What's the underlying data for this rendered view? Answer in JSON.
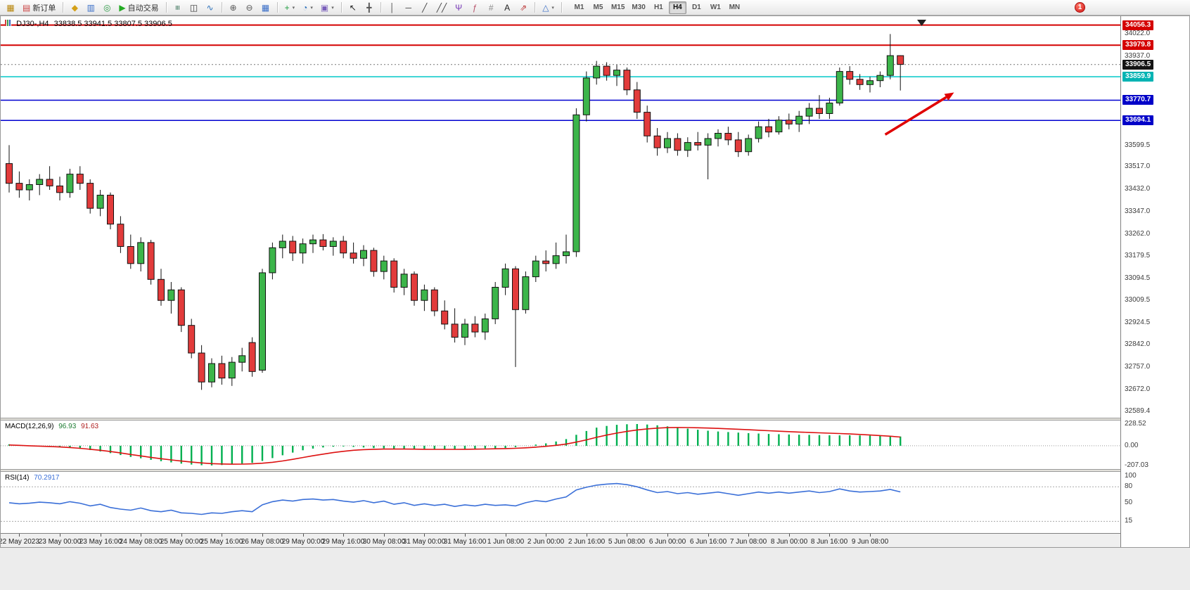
{
  "toolbar": {
    "groups": [
      {
        "name": "file-group",
        "items": [
          {
            "name": "chart-window-icon",
            "glyph": "▦",
            "color": "#b8860b"
          },
          {
            "name": "new-order-button",
            "glyph": "▤",
            "color": "#cc4444",
            "label": "新订单"
          }
        ]
      },
      {
        "name": "panels-group",
        "items": [
          {
            "name": "market-watch-icon",
            "glyph": "◆",
            "color": "#d4a017"
          },
          {
            "name": "data-window-icon",
            "glyph": "▥",
            "color": "#3a6fc8"
          },
          {
            "name": "navigator-icon",
            "glyph": "◎",
            "color": "#2e9b47"
          },
          {
            "name": "autotrading-button",
            "glyph": "▶",
            "color": "#22aa22",
            "label": "自动交易"
          }
        ]
      },
      {
        "name": "chart-type-group",
        "items": [
          {
            "name": "bars-chart-icon",
            "glyph": "≡",
            "color": "#2d6a4f",
            "rotate": true
          },
          {
            "name": "candles-chart-icon",
            "glyph": "◫",
            "color": "#333333"
          },
          {
            "name": "line-chart-icon",
            "glyph": "∿",
            "color": "#2a6fbb"
          }
        ]
      },
      {
        "name": "zoom-group",
        "items": [
          {
            "name": "zoom-in-icon",
            "glyph": "⊕",
            "color": "#555555"
          },
          {
            "name": "zoom-out-icon",
            "glyph": "⊖",
            "color": "#555555"
          },
          {
            "name": "tile-windows-icon",
            "glyph": "▦",
            "color": "#3a6fc8"
          }
        ]
      },
      {
        "name": "insert-group",
        "items": [
          {
            "name": "indicators-button",
            "glyph": "+",
            "color": "#1e9e40",
            "dropdown": true
          },
          {
            "name": "periods-button",
            "glyph": "◔",
            "color": "#2a6fbb",
            "dropdown": true
          },
          {
            "name": "templates-button",
            "glyph": "▣",
            "color": "#7a5fbb",
            "dropdown": true
          }
        ]
      },
      {
        "name": "cursor-group",
        "items": [
          {
            "name": "cursor-icon",
            "glyph": "↖",
            "color": "#222222"
          },
          {
            "name": "crosshair-icon",
            "glyph": "╋",
            "color": "#555555"
          }
        ]
      },
      {
        "name": "draw-group",
        "items": [
          {
            "name": "vline-icon",
            "glyph": "│",
            "color": "#444444"
          },
          {
            "name": "hline-icon",
            "glyph": "─",
            "color": "#444444"
          },
          {
            "name": "trendline-icon",
            "glyph": "╱",
            "color": "#444444"
          },
          {
            "name": "channel-icon",
            "glyph": "╱╱",
            "color": "#444444"
          },
          {
            "name": "pitchfork-icon",
            "glyph": "Ψ",
            "color": "#7a3db8"
          },
          {
            "name": "fibonacci-icon",
            "glyph": "ƒ",
            "color": "#b8536a"
          },
          {
            "name": "gann-icon",
            "glyph": "#",
            "color": "#888888"
          },
          {
            "name": "text-icon",
            "glyph": "A",
            "color": "#222222"
          },
          {
            "name": "arrows-icon",
            "glyph": "⇗",
            "color": "#bb3333"
          }
        ]
      },
      {
        "name": "shapes-group",
        "items": [
          {
            "name": "shapes-button",
            "glyph": "△",
            "color": "#3a6fc8",
            "dropdown": true
          }
        ]
      }
    ],
    "timeframes": [
      "M1",
      "M5",
      "M15",
      "M30",
      "H1",
      "H4",
      "D1",
      "W1",
      "MN"
    ],
    "active_timeframe": "H4",
    "notification_badge": "1"
  },
  "chart": {
    "header_symbol": "DJ30-,H4",
    "header_ohlc": "33838.5 33941.5 33807.5 33906.5"
  },
  "panels": {
    "macd": {
      "name": "MACD(12,26,9)",
      "value_main": "96.93",
      "value_signal": "91.63"
    },
    "rsi": {
      "name": "RSI(14)",
      "value": "70.2917"
    }
  },
  "chart_data": {
    "type": "candlestick",
    "symbol": "DJ30-",
    "period": "H4",
    "current_bar_ohlc": {
      "open": 33838.5,
      "high": 33941.5,
      "low": 33807.5,
      "close": 33906.5
    },
    "current_price": 33906.5,
    "colors": {
      "up": "#3cb54a",
      "down": "#e23b3b",
      "wick": "#111111",
      "macd_hist": "#00b050",
      "macd_signal": "#dd1111",
      "rsi_line": "#3a6fd8",
      "arrow": "#e00000"
    },
    "price_ticks": [
      "34022.0",
      "33937.0",
      "33599.5",
      "33517.0",
      "33432.0",
      "33347.0",
      "33262.0",
      "33179.5",
      "33094.5",
      "33009.5",
      "32924.5",
      "32842.0",
      "32757.0",
      "32672.0",
      "32589.4"
    ],
    "price_badges": [
      {
        "label": "34056.3",
        "color": "#d40000"
      },
      {
        "label": "33979.8",
        "color": "#d40000"
      },
      {
        "label": "33906.5",
        "color": "#141414"
      },
      {
        "label": "33859.9",
        "color": "#00b3b3"
      },
      {
        "label": "33770.7",
        "color": "#0000c8"
      },
      {
        "label": "33694.1",
        "color": "#0000c8"
      }
    ],
    "hlines": [
      {
        "value": 34056.3,
        "color": "#d40000",
        "width": 2
      },
      {
        "value": 33979.8,
        "color": "#d40000",
        "width": 2
      },
      {
        "value": 33859.9,
        "color": "#00c8c8",
        "width": 1.5
      },
      {
        "value": 33770.7,
        "color": "#0000d0",
        "width": 1.5
      },
      {
        "value": 33694.1,
        "color": "#0000d0",
        "width": 1.5
      }
    ],
    "arrow_annotation": {
      "from_index": 86.5,
      "from_price": 33640,
      "to_index": 93.3,
      "to_price": 33800
    },
    "candles": [
      [
        33530,
        33600,
        33420,
        33455
      ],
      [
        33455,
        33500,
        33400,
        33430
      ],
      [
        33430,
        33470,
        33390,
        33450
      ],
      [
        33450,
        33490,
        33410,
        33470
      ],
      [
        33470,
        33520,
        33430,
        33445
      ],
      [
        33445,
        33480,
        33390,
        33420
      ],
      [
        33420,
        33510,
        33400,
        33490
      ],
      [
        33490,
        33520,
        33430,
        33455
      ],
      [
        33455,
        33470,
        33340,
        33360
      ],
      [
        33360,
        33430,
        33330,
        33410
      ],
      [
        33410,
        33420,
        33280,
        33300
      ],
      [
        33300,
        33330,
        33190,
        33215
      ],
      [
        33215,
        33260,
        33130,
        33150
      ],
      [
        33150,
        33250,
        33120,
        33230
      ],
      [
        33230,
        33240,
        33070,
        33090
      ],
      [
        33090,
        33130,
        32990,
        33010
      ],
      [
        33010,
        33080,
        32960,
        33050
      ],
      [
        33050,
        33060,
        32890,
        32915
      ],
      [
        32915,
        32940,
        32790,
        32810
      ],
      [
        32810,
        32840,
        32670,
        32700
      ],
      [
        32700,
        32790,
        32680,
        32770
      ],
      [
        32770,
        32800,
        32690,
        32715
      ],
      [
        32715,
        32795,
        32685,
        32775
      ],
      [
        32775,
        32830,
        32740,
        32800
      ],
      [
        32850,
        32870,
        32720,
        32740
      ],
      [
        32745,
        33130,
        32735,
        33115
      ],
      [
        33115,
        33230,
        33090,
        33210
      ],
      [
        33210,
        33260,
        33170,
        33235
      ],
      [
        33235,
        33255,
        33160,
        33190
      ],
      [
        33190,
        33245,
        33150,
        33225
      ],
      [
        33225,
        33260,
        33190,
        33240
      ],
      [
        33240,
        33262,
        33200,
        33215
      ],
      [
        33215,
        33250,
        33180,
        33235
      ],
      [
        33235,
        33255,
        33170,
        33190
      ],
      [
        33190,
        33230,
        33150,
        33170
      ],
      [
        33170,
        33220,
        33140,
        33200
      ],
      [
        33200,
        33210,
        33100,
        33120
      ],
      [
        33120,
        33180,
        33090,
        33160
      ],
      [
        33160,
        33170,
        33040,
        33060
      ],
      [
        33060,
        33130,
        33030,
        33110
      ],
      [
        33110,
        33120,
        32990,
        33010
      ],
      [
        33010,
        33070,
        32970,
        33050
      ],
      [
        33050,
        33060,
        32950,
        32970
      ],
      [
        32970,
        33010,
        32900,
        32920
      ],
      [
        32920,
        32980,
        32850,
        32870
      ],
      [
        32870,
        32940,
        32840,
        32920
      ],
      [
        32920,
        32950,
        32870,
        32890
      ],
      [
        32890,
        32960,
        32860,
        32940
      ],
      [
        32940,
        33080,
        32920,
        33060
      ],
      [
        33060,
        33150,
        33030,
        33130
      ],
      [
        33130,
        33140,
        32757,
        32975
      ],
      [
        32975,
        33120,
        32960,
        33100
      ],
      [
        33100,
        33180,
        33080,
        33160
      ],
      [
        33160,
        33200,
        33120,
        33150
      ],
      [
        33150,
        33230,
        33130,
        33180
      ],
      [
        33180,
        33260,
        33150,
        33195
      ],
      [
        33195,
        33740,
        33175,
        33715
      ],
      [
        33715,
        33880,
        33690,
        33855
      ],
      [
        33855,
        33920,
        33830,
        33900
      ],
      [
        33900,
        33915,
        33845,
        33865
      ],
      [
        33865,
        33905,
        33825,
        33885
      ],
      [
        33885,
        33895,
        33790,
        33810
      ],
      [
        33810,
        33840,
        33700,
        33725
      ],
      [
        33725,
        33750,
        33610,
        33635
      ],
      [
        33635,
        33665,
        33560,
        33590
      ],
      [
        33590,
        33650,
        33570,
        33625
      ],
      [
        33625,
        33645,
        33560,
        33580
      ],
      [
        33580,
        33630,
        33555,
        33610
      ],
      [
        33610,
        33650,
        33580,
        33600
      ],
      [
        33600,
        33645,
        33470,
        33625
      ],
      [
        33625,
        33660,
        33595,
        33645
      ],
      [
        33645,
        33670,
        33600,
        33620
      ],
      [
        33620,
        33650,
        33555,
        33575
      ],
      [
        33575,
        33640,
        33560,
        33625
      ],
      [
        33625,
        33690,
        33610,
        33670
      ],
      [
        33670,
        33700,
        33630,
        33650
      ],
      [
        33650,
        33710,
        33640,
        33695
      ],
      [
        33695,
        33720,
        33660,
        33680
      ],
      [
        33680,
        33730,
        33650,
        33710
      ],
      [
        33710,
        33760,
        33680,
        33740
      ],
      [
        33740,
        33790,
        33700,
        33720
      ],
      [
        33720,
        33780,
        33700,
        33760
      ],
      [
        33760,
        33895,
        33750,
        33880
      ],
      [
        33880,
        33900,
        33830,
        33850
      ],
      [
        33850,
        33870,
        33810,
        33830
      ],
      [
        33830,
        33860,
        33800,
        33845
      ],
      [
        33845,
        33880,
        33820,
        33865
      ],
      [
        33865,
        34022,
        33850,
        33940
      ],
      [
        33940,
        33941.5,
        33807.5,
        33906.5
      ]
    ],
    "macd": {
      "axis_ticks": [
        "228.52",
        "0.00",
        "-207.03"
      ],
      "hist": [
        15,
        8,
        2,
        -3,
        -8,
        -14,
        -22,
        -32,
        -45,
        -60,
        -78,
        -98,
        -118,
        -132,
        -148,
        -162,
        -175,
        -188,
        -198,
        -205,
        -207,
        -203,
        -196,
        -188,
        -180,
        -160,
        -130,
        -100,
        -72,
        -48,
        -30,
        -18,
        -10,
        -8,
        -12,
        -18,
        -25,
        -28,
        -34,
        -36,
        -40,
        -38,
        -40,
        -38,
        -40,
        -36,
        -32,
        -28,
        -26,
        -24,
        -15,
        -2,
        12,
        25,
        45,
        70,
        115,
        155,
        190,
        208,
        220,
        226,
        228,
        223,
        215,
        204,
        192,
        180,
        168,
        158,
        150,
        144,
        138,
        132,
        128,
        124,
        121,
        118,
        116,
        114,
        112,
        110,
        109,
        110,
        108,
        106,
        104,
        100,
        96.93
      ],
      "signal": [
        8,
        4,
        0,
        -4,
        -8,
        -13,
        -19,
        -27,
        -37,
        -48,
        -61,
        -76,
        -92,
        -107,
        -122,
        -136,
        -149,
        -161,
        -172,
        -181,
        -188,
        -192,
        -194,
        -193,
        -190,
        -184,
        -174,
        -160,
        -143,
        -124,
        -105,
        -88,
        -72,
        -59,
        -48,
        -41,
        -37,
        -35,
        -35,
        -35,
        -36,
        -37,
        -38,
        -38,
        -38,
        -37,
        -36,
        -34,
        -32,
        -30,
        -27,
        -22,
        -15,
        -6,
        4,
        18,
        38,
        62,
        88,
        112,
        133,
        151,
        166,
        177,
        185,
        190,
        192,
        191,
        189,
        186,
        182,
        178,
        173,
        168,
        163,
        158,
        153,
        148,
        144,
        140,
        136,
        132,
        128,
        124,
        119,
        113,
        107,
        100,
        91.63
      ]
    },
    "rsi": {
      "axis_ticks": [
        "100",
        "80",
        "50",
        "15"
      ],
      "levels": [
        80,
        15
      ],
      "series": [
        50,
        48,
        49,
        51,
        50,
        48,
        52,
        49,
        44,
        47,
        41,
        38,
        36,
        40,
        35,
        33,
        36,
        31,
        30,
        28,
        31,
        30,
        33,
        35,
        33,
        46,
        52,
        55,
        53,
        56,
        57,
        55,
        56,
        53,
        51,
        54,
        50,
        53,
        47,
        50,
        45,
        48,
        45,
        47,
        43,
        46,
        44,
        47,
        45,
        46,
        44,
        50,
        54,
        52,
        57,
        61,
        74,
        79,
        83,
        85,
        86,
        84,
        80,
        74,
        69,
        71,
        67,
        69,
        66,
        68,
        70,
        67,
        64,
        67,
        70,
        68,
        70,
        68,
        70,
        72,
        69,
        71,
        76,
        72,
        70,
        71,
        72,
        75,
        70.29
      ]
    },
    "time_labels": [
      "22 May 2023",
      "23 May 00:00",
      "23 May 16:00",
      "24 May 08:00",
      "25 May 00:00",
      "25 May 16:00",
      "26 May 08:00",
      "29 May 00:00",
      "29 May 16:00",
      "30 May 08:00",
      "31 May 00:00",
      "31 May 16:00",
      "1 Jun 08:00",
      "2 Jun 00:00",
      "2 Jun 16:00",
      "5 Jun 08:00",
      "6 Jun 00:00",
      "6 Jun 16:00",
      "7 Jun 08:00",
      "8 Jun 00:00",
      "8 Jun 16:00",
      "9 Jun 08:00"
    ]
  }
}
